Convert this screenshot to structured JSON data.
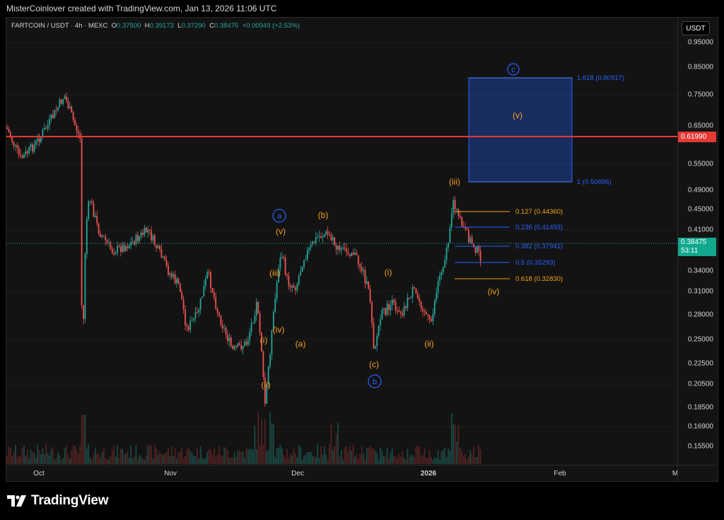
{
  "header": {
    "credit": "MisterCoinlover created with TradingView.com, Jan 13, 2026 11:06 UTC"
  },
  "symbol": {
    "title": "FARTCOIN / USDT · 4h · MEXC",
    "open_label": "O",
    "open": "0.37500",
    "high_label": "H",
    "high": "0.39173",
    "low_label": "L",
    "low": "0.37290",
    "close_label": "C",
    "close": "0.38475",
    "change": "+0.00949 (+2.53%)"
  },
  "currency_button": "USDT",
  "price_axis": [
    "0.95000",
    "0.85000",
    "0.75000",
    "0.65000",
    "0.55000",
    "0.49000",
    "0.45000",
    "0.41000",
    "0.34000",
    "0.31000",
    "0.28000",
    "0.25000",
    "0.22500",
    "0.20500",
    "0.18500",
    "0.16900",
    "0.15500"
  ],
  "time_axis": [
    "Oct",
    "Nov",
    "Dec",
    "2026",
    "Feb",
    "M"
  ],
  "badges": {
    "resistance": "0.61990",
    "last_price": "0.38475",
    "countdown": "53:11"
  },
  "fib_levels": [
    {
      "label": "0.127 (0.44360)",
      "color": "#f7a21b"
    },
    {
      "label": "0.236 (0.41493)",
      "color": "#2962ff"
    },
    {
      "label": "0.382 (0.37941)",
      "color": "#2962ff"
    },
    {
      "label": "0.5 (0.35293)",
      "color": "#2962ff"
    },
    {
      "label": "0.618 (0.32830)",
      "color": "#f7a21b"
    }
  ],
  "target_box": {
    "top_label": "1.618 (0.80917)",
    "bottom_label": "1 (0.50696)"
  },
  "wave_labels": {
    "circle_c": "c",
    "target_v": "(v)",
    "iii_top": "(iii)",
    "circle_a": "a",
    "v_small": "(v)",
    "b_paren": "(b)",
    "iii_small": "(iii)",
    "iv_small": "(iv)",
    "i_small": "(i)",
    "ii_small": "(ii)",
    "a_paren": "(a)",
    "c_paren": "(c)",
    "circle_b": "b",
    "i_mid": "(i)",
    "ii_mid": "(ii)",
    "iv_right": "(iv)"
  },
  "colors": {
    "up": "#26a69a",
    "down": "#ef5350",
    "resistance": "#e53935",
    "wave": "#f7a21b",
    "circle": "#2962ff"
  },
  "footer": {
    "brand": "TradingView"
  }
}
